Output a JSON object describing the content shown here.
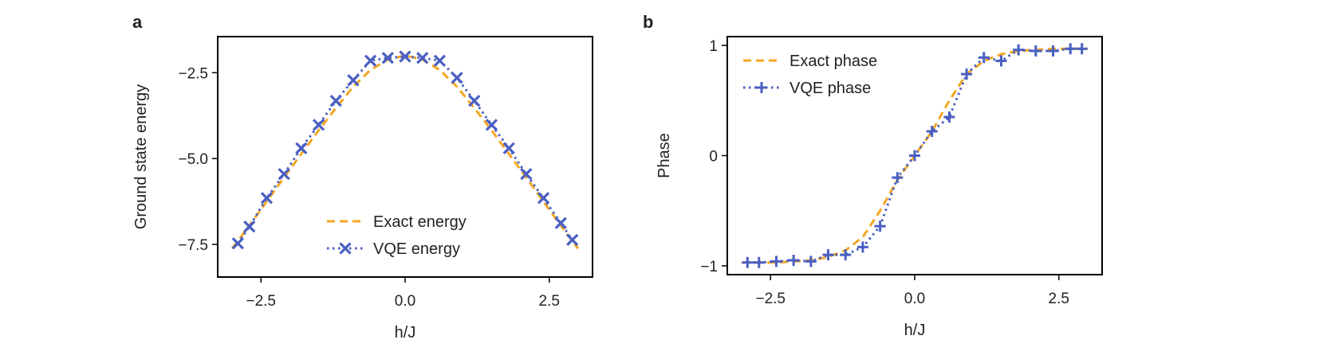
{
  "colors": {
    "exact": "#f5a623",
    "vqe": "#4a5fc1",
    "axis": "#000000"
  },
  "chart_data": [
    {
      "panel": "a",
      "type": "line",
      "xlabel": "h/J",
      "ylabel": "Ground state energy",
      "xlim": [
        -3.25,
        3.25
      ],
      "ylim": [
        -8.45,
        -1.45
      ],
      "xticks": [
        -2.5,
        0.0,
        2.5
      ],
      "xtick_labels": [
        "−2.5",
        "0.0",
        "2.5"
      ],
      "yticks": [
        -7.5,
        -5.0,
        -2.5
      ],
      "ytick_labels": [
        "−7.5",
        "−5.0",
        "−2.5"
      ],
      "legend_position": "lower-center",
      "series": [
        {
          "name": "Exact energy",
          "style": "dashed",
          "x": [
            -3.0,
            -2.7,
            -2.4,
            -2.1,
            -1.8,
            -1.5,
            -1.2,
            -0.9,
            -0.6,
            -0.3,
            0.0,
            0.3,
            0.6,
            0.9,
            1.2,
            1.5,
            1.8,
            2.1,
            2.4,
            2.7,
            3.0
          ],
          "y": [
            -7.62,
            -6.95,
            -6.25,
            -5.55,
            -4.87,
            -4.18,
            -3.53,
            -2.91,
            -2.42,
            -2.12,
            -2.0,
            -2.12,
            -2.42,
            -2.91,
            -3.53,
            -4.18,
            -4.87,
            -5.55,
            -6.25,
            -6.95,
            -7.62
          ]
        },
        {
          "name": "VQE energy",
          "style": "dotted",
          "marker": "x",
          "x": [
            -2.9,
            -2.7,
            -2.4,
            -2.1,
            -1.8,
            -1.5,
            -1.2,
            -0.9,
            -0.6,
            -0.3,
            0.0,
            0.3,
            0.6,
            0.9,
            1.2,
            1.5,
            1.8,
            2.1,
            2.4,
            2.7,
            2.9
          ],
          "y": [
            -7.47,
            -6.98,
            -6.15,
            -5.45,
            -4.7,
            -4.02,
            -3.32,
            -2.72,
            -2.15,
            -2.07,
            -2.03,
            -2.07,
            -2.15,
            -2.65,
            -3.32,
            -4.02,
            -4.7,
            -5.45,
            -6.15,
            -6.88,
            -7.37
          ]
        }
      ]
    },
    {
      "panel": "b",
      "type": "line",
      "xlabel": "h/J",
      "ylabel": "Phase",
      "xlim": [
        -3.25,
        3.25
      ],
      "ylim": [
        -1.08,
        1.08
      ],
      "xticks": [
        -2.5,
        0.0,
        2.5
      ],
      "xtick_labels": [
        "−2.5",
        "0.0",
        "2.5"
      ],
      "yticks": [
        -1,
        0,
        1
      ],
      "ytick_labels": [
        "−1",
        "0",
        "1"
      ],
      "legend_position": "upper-left",
      "series": [
        {
          "name": "Exact phase",
          "style": "dashed",
          "x": [
            -3.0,
            -2.4,
            -1.8,
            -1.5,
            -1.2,
            -0.9,
            -0.6,
            -0.3,
            0.0,
            0.3,
            0.6,
            0.9,
            1.2,
            1.5,
            1.8,
            2.4,
            3.0
          ],
          "y": [
            -0.97,
            -0.97,
            -0.95,
            -0.92,
            -0.86,
            -0.74,
            -0.5,
            -0.22,
            0.0,
            0.22,
            0.5,
            0.74,
            0.86,
            0.92,
            0.95,
            0.97,
            0.97
          ]
        },
        {
          "name": "VQE phase",
          "style": "dotted",
          "marker": "+",
          "x": [
            -2.9,
            -2.7,
            -2.4,
            -2.1,
            -1.8,
            -1.5,
            -1.2,
            -0.9,
            -0.6,
            -0.3,
            0.0,
            0.3,
            0.6,
            0.9,
            1.2,
            1.5,
            1.8,
            2.1,
            2.4,
            2.7,
            2.9
          ],
          "y": [
            -0.97,
            -0.97,
            -0.96,
            -0.95,
            -0.96,
            -0.9,
            -0.9,
            -0.83,
            -0.64,
            -0.2,
            0.0,
            0.22,
            0.35,
            0.74,
            0.89,
            0.86,
            0.96,
            0.95,
            0.95,
            0.97,
            0.97
          ]
        }
      ]
    }
  ]
}
